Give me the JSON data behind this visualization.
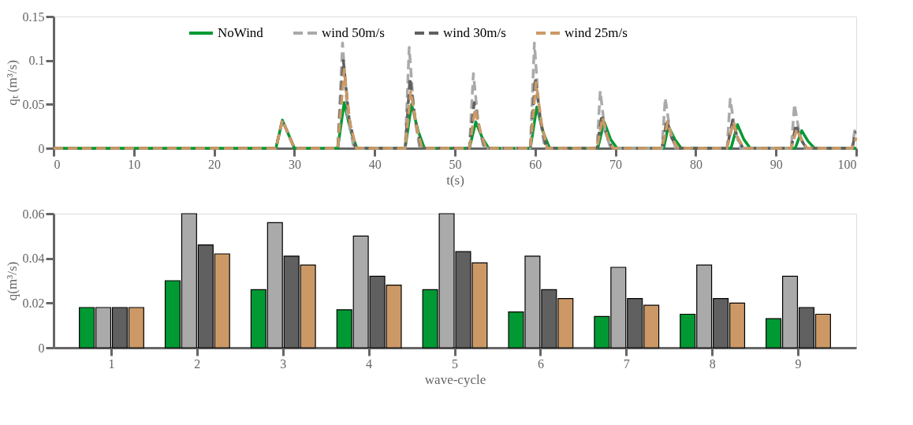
{
  "chart_data": [
    {
      "type": "line",
      "xlabel": "t(s)",
      "ylabel": "qₜ (m³/s)",
      "xlim": [
        0,
        100
      ],
      "ylim": [
        0,
        0.15
      ],
      "xticks": [
        0,
        10,
        20,
        30,
        40,
        50,
        60,
        70,
        80,
        90,
        100
      ],
      "yticks": [
        0,
        0.05,
        0.1,
        0.15
      ],
      "legend": "top",
      "grid": false,
      "series": [
        {
          "name": "NoWind",
          "color": "#009933",
          "line_style": "solid",
          "x": [
            0,
            27.7,
            28.5,
            29.3,
            30,
            35.4,
            36.2,
            37,
            37.8,
            43.8,
            44.6,
            45.4,
            46.2,
            51.8,
            52.6,
            53.4,
            54.2,
            59.4,
            60.2,
            61,
            61.8,
            67.8,
            68.6,
            69.4,
            70.2,
            76,
            76.6,
            77.4,
            78.2,
            84.4,
            85.2,
            86,
            86.8,
            92.4,
            93.2,
            94,
            94.8,
            100
          ],
          "values": [
            0,
            0,
            0.032,
            0.015,
            0,
            0,
            0.052,
            0.02,
            0,
            0,
            0.05,
            0.02,
            0,
            0,
            0.03,
            0.012,
            0,
            0,
            0.047,
            0.018,
            0,
            0,
            0.03,
            0.01,
            0,
            0,
            0.025,
            0.01,
            0,
            0,
            0.027,
            0.01,
            0,
            0,
            0.02,
            0.008,
            0,
            0
          ]
        },
        {
          "name": "wind 50m/s",
          "color": "#aaaaaa",
          "line_style": "dashed",
          "x": [
            0,
            27.7,
            28.5,
            29.3,
            30,
            35.4,
            36,
            36.6,
            37.4,
            43.8,
            44.3,
            44.9,
            45.6,
            51.8,
            52.3,
            52.9,
            53.6,
            59.4,
            59.9,
            60.5,
            61.2,
            67.7,
            68.1,
            68.7,
            69.4,
            75.8,
            76.2,
            76.8,
            77.5,
            83.9,
            84.3,
            84.9,
            85.6,
            91.9,
            92.3,
            92.9,
            93.6,
            99.5,
            99.8,
            100
          ],
          "values": [
            0,
            0,
            0.032,
            0.015,
            0,
            0,
            0.12,
            0.04,
            0,
            0,
            0.115,
            0.04,
            0,
            0,
            0.085,
            0.03,
            0,
            0,
            0.12,
            0.04,
            0,
            0,
            0.065,
            0.02,
            0,
            0,
            0.057,
            0.02,
            0,
            0,
            0.056,
            0.02,
            0,
            0,
            0.05,
            0.018,
            0,
            0,
            0.02,
            0.015
          ]
        },
        {
          "name": "wind 30m/s",
          "color": "#606060",
          "line_style": "dashed",
          "x": [
            0,
            27.7,
            28.5,
            29.3,
            30,
            35.4,
            36.1,
            36.8,
            37.6,
            43.8,
            44.4,
            45.1,
            45.8,
            51.8,
            52.4,
            53.1,
            53.8,
            59.4,
            60,
            60.7,
            61.4,
            67.7,
            68.3,
            68.9,
            69.6,
            75.8,
            76.4,
            77,
            77.7,
            83.9,
            84.6,
            85.2,
            85.9,
            91.9,
            92.5,
            93.1,
            93.8,
            99.5,
            99.9,
            100
          ],
          "values": [
            0,
            0,
            0.032,
            0.015,
            0,
            0,
            0.1,
            0.035,
            0,
            0,
            0.08,
            0.03,
            0,
            0,
            0.052,
            0.02,
            0,
            0,
            0.08,
            0.03,
            0,
            0,
            0.038,
            0.015,
            0,
            0,
            0.033,
            0.012,
            0,
            0,
            0.032,
            0.012,
            0,
            0,
            0.027,
            0.01,
            0,
            0,
            0.018,
            0.018
          ]
        },
        {
          "name": "wind 25m/s",
          "color": "#cc9966",
          "line_style": "dashed",
          "x": [
            0,
            27.7,
            28.5,
            29.3,
            30,
            35.4,
            36.2,
            36.9,
            37.7,
            43.8,
            44.5,
            45.2,
            45.9,
            51.8,
            52.5,
            53.2,
            53.9,
            59.4,
            60.1,
            60.8,
            61.5,
            67.7,
            68.4,
            69,
            69.7,
            75.8,
            76.5,
            77.1,
            77.8,
            83.9,
            84.7,
            85.3,
            86,
            91.9,
            92.6,
            93.2,
            93.9,
            99.5,
            100
          ],
          "values": [
            0,
            0,
            0.032,
            0.015,
            0,
            0,
            0.09,
            0.03,
            0,
            0,
            0.065,
            0.025,
            0,
            0,
            0.045,
            0.018,
            0,
            0,
            0.075,
            0.028,
            0,
            0,
            0.035,
            0.013,
            0,
            0,
            0.03,
            0.011,
            0,
            0,
            0.03,
            0.011,
            0,
            0,
            0.022,
            0.009,
            0,
            0,
            0.012
          ]
        }
      ]
    },
    {
      "type": "bar",
      "xlabel": "wave-cycle",
      "ylabel": "q(m³/s)",
      "ylim": [
        0,
        0.06
      ],
      "yticks": [
        0,
        0.02,
        0.04,
        0.06
      ],
      "grid": false,
      "legend": false,
      "categories": [
        "1",
        "2",
        "3",
        "4",
        "5",
        "6",
        "7",
        "8",
        "9"
      ],
      "series": [
        {
          "color": "#009933",
          "values": [
            0.018,
            0.03,
            0.026,
            0.017,
            0.026,
            0.016,
            0.014,
            0.015,
            0.013
          ]
        },
        {
          "color": "#aaaaaa",
          "values": [
            0.018,
            0.06,
            0.056,
            0.05,
            0.06,
            0.041,
            0.036,
            0.037,
            0.032
          ]
        },
        {
          "color": "#606060",
          "values": [
            0.018,
            0.046,
            0.041,
            0.032,
            0.043,
            0.026,
            0.022,
            0.022,
            0.018
          ]
        },
        {
          "color": "#cc9966",
          "values": [
            0.018,
            0.042,
            0.037,
            0.028,
            0.038,
            0.022,
            0.019,
            0.02,
            0.015
          ]
        }
      ]
    }
  ]
}
